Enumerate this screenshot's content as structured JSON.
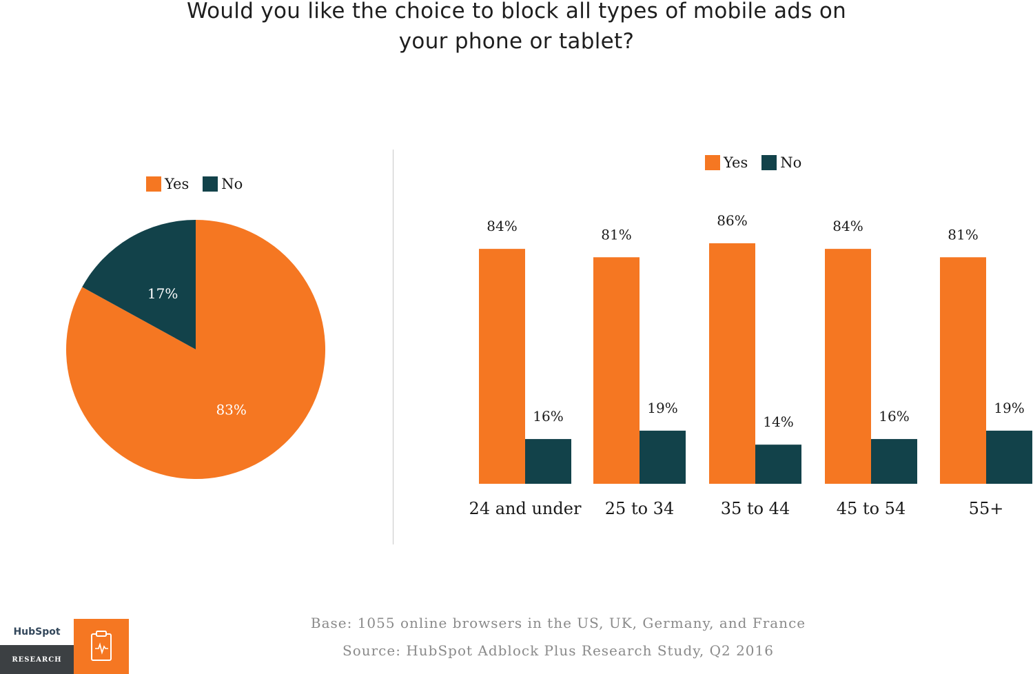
{
  "title_line1": "Would you like the choice to block all types of mobile ads on",
  "title_line2": "your phone or tablet?",
  "legend": {
    "yes": "Yes",
    "no": "No"
  },
  "colors": {
    "yes": "#f57722",
    "no": "#12424a"
  },
  "chart_data": [
    {
      "type": "pie",
      "labels": [
        "Yes",
        "No"
      ],
      "values": [
        83,
        17
      ],
      "value_labels": [
        "83%",
        "17%"
      ],
      "legend_placement": "top"
    },
    {
      "type": "bar",
      "categories": [
        "24 and under",
        "25 to 34",
        "35 to 44",
        "45 to 54",
        "55+"
      ],
      "series": [
        {
          "name": "Yes",
          "values": [
            84,
            81,
            86,
            84,
            81
          ]
        },
        {
          "name": "No",
          "values": [
            16,
            19,
            14,
            16,
            19
          ]
        }
      ],
      "ylim": [
        0,
        86
      ],
      "grid": false,
      "legend_placement": "top"
    }
  ],
  "footer": {
    "base": "Base: 1055 online browsers in the US, UK, Germany, and France",
    "source": "Source: HubSpot Adblock Plus Research Study, Q2 2016"
  },
  "logo": {
    "brand": "HubSpot",
    "label": "RESEARCH",
    "icon": "clipboard-pulse-icon"
  }
}
